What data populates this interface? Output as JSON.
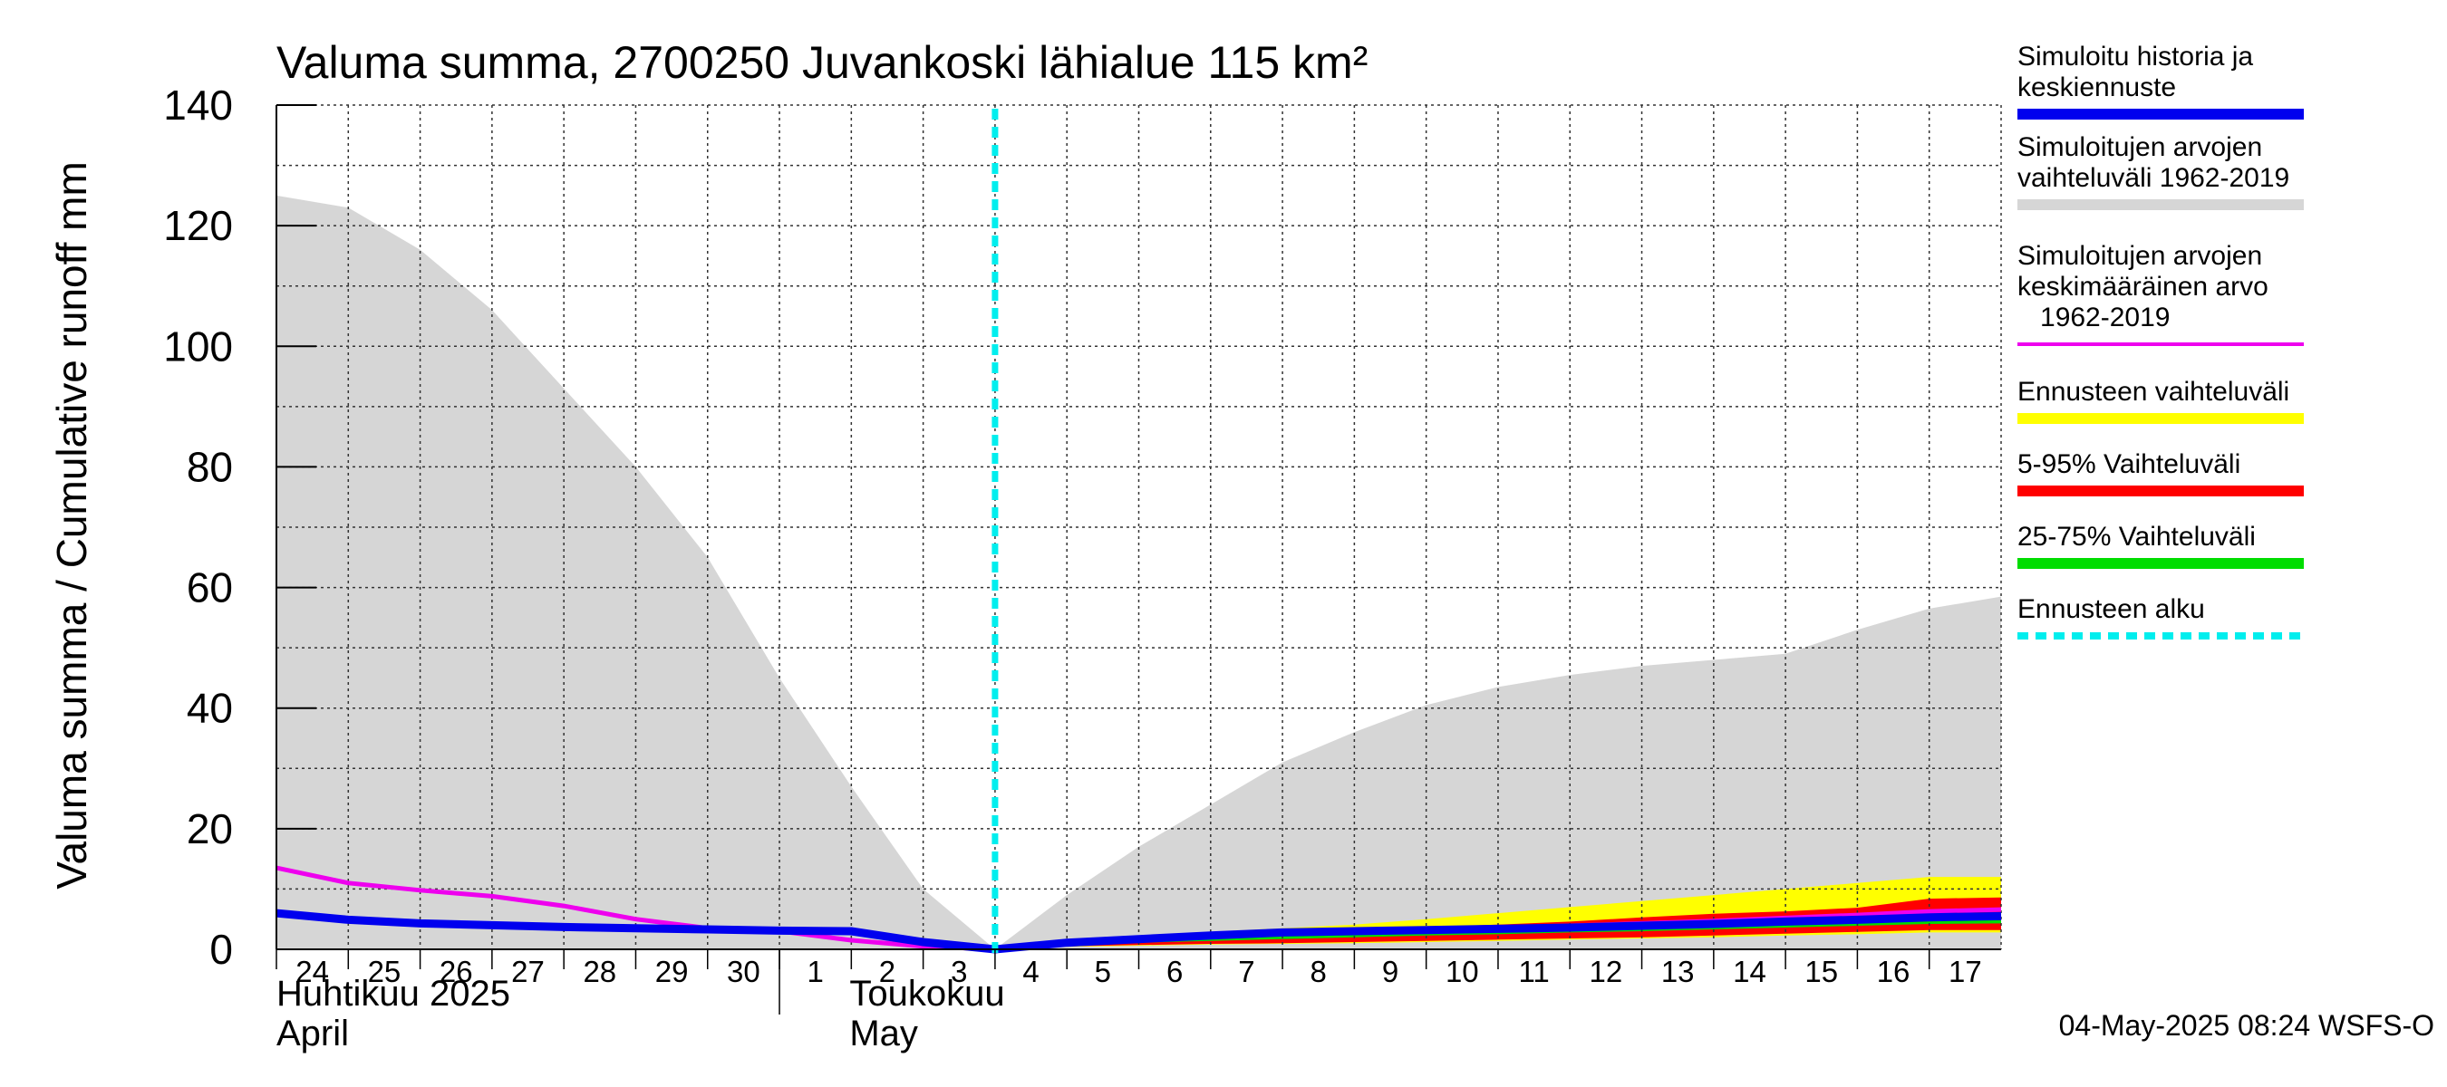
{
  "chart_data": {
    "type": "area",
    "title": "Valuma summa, 2700250 Juvankoski lähialue 115 km²",
    "ylabel": "Valuma summa / Cumulative runoff    mm",
    "ylim": [
      0,
      140
    ],
    "yticks": [
      0,
      20,
      40,
      60,
      80,
      100,
      120,
      140
    ],
    "x_range_days": [
      0,
      24
    ],
    "day_labels": [
      "24",
      "25",
      "26",
      "27",
      "28",
      "29",
      "30",
      "1",
      "2",
      "3",
      "4",
      "5",
      "6",
      "7",
      "8",
      "9",
      "10",
      "11",
      "12",
      "13",
      "14",
      "15",
      "16",
      "17"
    ],
    "months": [
      {
        "name_fi": "Huhtikuu  2025",
        "name_en": "April",
        "start_day_index": 0
      },
      {
        "name_fi": "Toukokuu",
        "name_en": "May",
        "start_day_index": 7
      }
    ],
    "forecast_start_day": 10.0,
    "series": [
      {
        "name": "Simuloitujen arvojen vaihteluväli 1962-2019",
        "kind": "band",
        "color": "#d6d6d6",
        "x": [
          0,
          1,
          2,
          3,
          4,
          5,
          6,
          7,
          8,
          9,
          10,
          11,
          12,
          13,
          14,
          15,
          16,
          17,
          18,
          19,
          20,
          21,
          22,
          23,
          24
        ],
        "upper": [
          125,
          123,
          116,
          106,
          93,
          80,
          65,
          45,
          27,
          10,
          0,
          9,
          17,
          24,
          31,
          36,
          40.5,
          43.5,
          45.5,
          47,
          48,
          49,
          53,
          56.5,
          58.5
        ],
        "lower": [
          0,
          0,
          0,
          0,
          0,
          0,
          0,
          0,
          0,
          0,
          0,
          0,
          0,
          0,
          0,
          0,
          0,
          0,
          0,
          0,
          0,
          0,
          0,
          0,
          0
        ]
      },
      {
        "name": "Ennusteen vaihteluväli",
        "kind": "band",
        "color": "#ffff00",
        "x": [
          10,
          11,
          12,
          13,
          14,
          15,
          16,
          17,
          18,
          19,
          20,
          21,
          22,
          23,
          24
        ],
        "upper": [
          0.2,
          1.4,
          2.3,
          2.9,
          3.5,
          4.1,
          5,
          6,
          7,
          8,
          9,
          10,
          11,
          12,
          12
        ],
        "lower": [
          0.1,
          0.4,
          0.6,
          0.8,
          0.9,
          1,
          1.2,
          1.4,
          1.6,
          1.8,
          2,
          2.3,
          2.5,
          2.8,
          2.8
        ]
      },
      {
        "name": "5-95% Vaihteluväli",
        "kind": "band",
        "color": "#ff0000",
        "x": [
          10,
          11,
          12,
          13,
          14,
          15,
          16,
          17,
          18,
          19,
          20,
          21,
          22,
          23,
          24
        ],
        "upper": [
          0.2,
          1.3,
          2.1,
          2.7,
          3.1,
          3.4,
          3.7,
          4.1,
          4.6,
          5.3,
          5.9,
          6.3,
          6.9,
          8.4,
          8.6
        ],
        "lower": [
          0.1,
          0.5,
          0.7,
          0.9,
          1,
          1.2,
          1.4,
          1.6,
          1.8,
          2,
          2.3,
          2.6,
          2.9,
          3.2,
          3.2
        ]
      },
      {
        "name": "25-75% Vaihteluväli",
        "kind": "band",
        "color": "#00dd00",
        "x": [
          10,
          11,
          12,
          13,
          14,
          15,
          16,
          17,
          18,
          19,
          20,
          21,
          22,
          23,
          24
        ],
        "upper": [
          0.15,
          1.0,
          1.6,
          2.2,
          2.6,
          2.9,
          3.2,
          3.4,
          3.7,
          4.0,
          4.4,
          4.8,
          5.2,
          5.6,
          5.8
        ],
        "lower": [
          0.1,
          0.7,
          1.1,
          1.4,
          1.7,
          2.0,
          2.3,
          2.5,
          2.8,
          3.0,
          3.3,
          3.6,
          3.9,
          4.2,
          4.3
        ]
      },
      {
        "name": "Simuloitujen arvojen keskimääräinen arvo 1962-2019",
        "kind": "line",
        "color": "#ee00ee",
        "width": 5,
        "x": [
          0,
          1,
          2,
          3,
          4,
          5,
          6,
          7,
          8,
          9,
          10,
          11,
          12,
          13,
          14,
          15,
          16,
          17,
          18,
          19,
          20,
          21,
          22,
          23,
          24
        ],
        "y": [
          13.5,
          11,
          9.8,
          8.8,
          7.2,
          5,
          3.5,
          3,
          1.5,
          0.5,
          0,
          1,
          1.6,
          2.2,
          2.6,
          3.0,
          3.3,
          3.6,
          3.9,
          4.3,
          4.7,
          5.2,
          5.7,
          6.3,
          6.6
        ]
      },
      {
        "name": "Simuloitu historia ja keskiennuste",
        "kind": "line",
        "color": "#0000ee",
        "width": 9,
        "x": [
          0,
          1,
          2,
          3,
          4,
          5,
          6,
          7,
          8,
          9,
          10,
          11,
          12,
          13,
          14,
          15,
          16,
          17,
          18,
          19,
          20,
          21,
          22,
          23,
          24
        ],
        "y": [
          6,
          4.9,
          4.3,
          4,
          3.7,
          3.5,
          3.3,
          3.1,
          3.0,
          1.2,
          0,
          1.1,
          1.7,
          2.3,
          2.8,
          3.0,
          3.2,
          3.4,
          3.6,
          3.9,
          4.2,
          4.6,
          4.9,
          5.3,
          5.5
        ]
      },
      {
        "name": "Ennusteen alku",
        "kind": "vline",
        "color": "#00eeee",
        "x": 10.0
      }
    ]
  },
  "legend": [
    {
      "lines": [
        "Simuloitu historia ja",
        "keskiennuste"
      ],
      "color": "#0000ee",
      "style": "solid"
    },
    {
      "lines": [
        "Simuloitujen arvojen",
        "vaihteluväli 1962-2019"
      ],
      "color": "#d6d6d6",
      "style": "solid"
    },
    {
      "lines": [
        "Simuloitujen arvojen",
        "keskimääräinen arvo",
        "   1962-2019"
      ],
      "color": "#ee00ee",
      "style": "thin"
    },
    {
      "lines": [
        "Ennusteen vaihteluväli"
      ],
      "color": "#ffff00",
      "style": "solid"
    },
    {
      "lines": [
        "5-95% Vaihteluväli"
      ],
      "color": "#ff0000",
      "style": "solid"
    },
    {
      "lines": [
        "25-75% Vaihteluväli"
      ],
      "color": "#00dd00",
      "style": "solid"
    },
    {
      "lines": [
        "Ennusteen alku"
      ],
      "color": "#00eeee",
      "style": "dashed"
    }
  ],
  "footer": "04-May-2025 08:24 WSFS-O"
}
